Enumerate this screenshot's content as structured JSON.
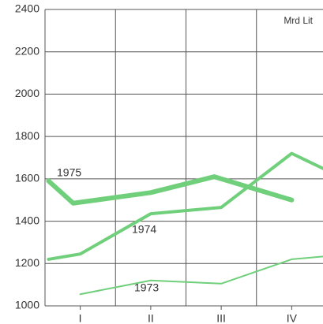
{
  "chart_data": {
    "type": "line",
    "unit_label": "Mrd Lit",
    "categories": [
      "I",
      "II",
      "III",
      "IV"
    ],
    "xlim": [
      0,
      4
    ],
    "ylim": [
      1000,
      2400
    ],
    "yticks": [
      1000,
      1200,
      1400,
      1600,
      1800,
      2000,
      2200,
      2400
    ],
    "grid": true,
    "series": [
      {
        "name": "1975",
        "color": "#6fcf7a",
        "width": 6,
        "x": [
          0.05,
          0.4,
          1.5,
          2.4,
          3.5
        ],
        "values": [
          1590,
          1485,
          1535,
          1610,
          1500
        ]
      },
      {
        "name": "1974",
        "color": "#6fcf7a",
        "width": 4,
        "x": [
          0.05,
          0.5,
          1.5,
          2.5,
          3.5,
          4
        ],
        "values": [
          1220,
          1245,
          1435,
          1465,
          1720,
          1640
        ]
      },
      {
        "name": "1973",
        "color": "#6fcf7a",
        "width": 2,
        "x": [
          0.5,
          1.5,
          2.5,
          3.5,
          4
        ],
        "values": [
          1055,
          1120,
          1105,
          1220,
          1235
        ]
      }
    ]
  }
}
